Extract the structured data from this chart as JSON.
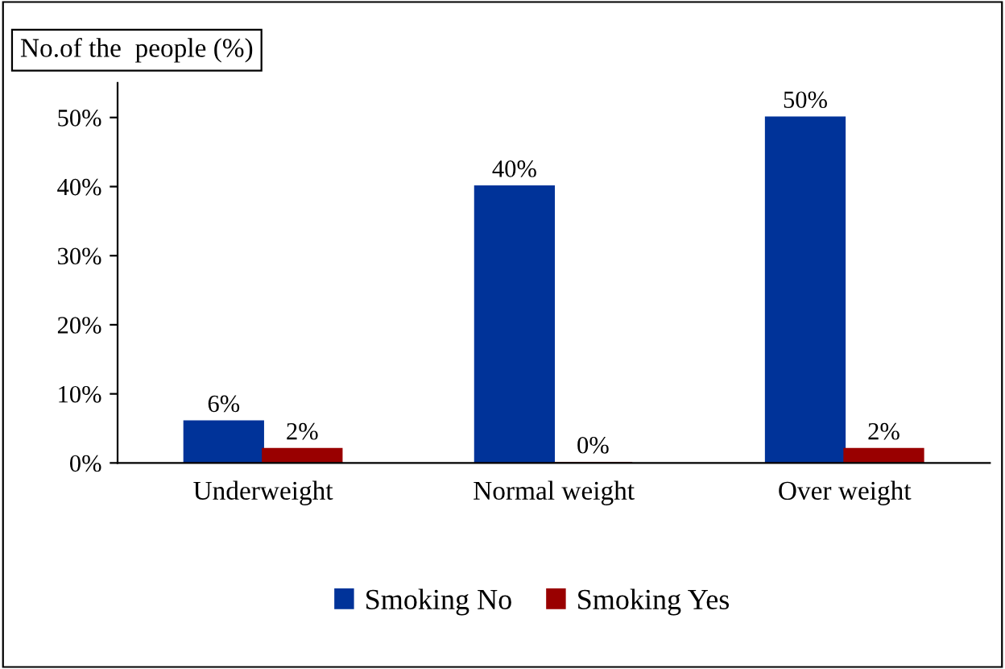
{
  "chart_data": {
    "type": "bar",
    "ylabel": "No.of the  people (%)",
    "categories": [
      "Underweight",
      "Normal weight",
      "Over weight"
    ],
    "series": [
      {
        "name": "Smoking No",
        "color": "#003399",
        "values": [
          6,
          40,
          50
        ],
        "value_labels": [
          "6%",
          "40%",
          "50%"
        ]
      },
      {
        "name": "Smoking Yes",
        "color": "#990000",
        "values": [
          2,
          0,
          2
        ],
        "value_labels": [
          "2%",
          "0%",
          "2%"
        ]
      }
    ],
    "ylim": [
      0,
      55
    ],
    "yticks": [
      {
        "value": 0,
        "label": "0%"
      },
      {
        "value": 10,
        "label": "10%"
      },
      {
        "value": 20,
        "label": "20%"
      },
      {
        "value": 30,
        "label": "30%"
      },
      {
        "value": 40,
        "label": "40%"
      },
      {
        "value": 50,
        "label": "50%"
      }
    ],
    "grid": false,
    "legend": "bottom"
  }
}
